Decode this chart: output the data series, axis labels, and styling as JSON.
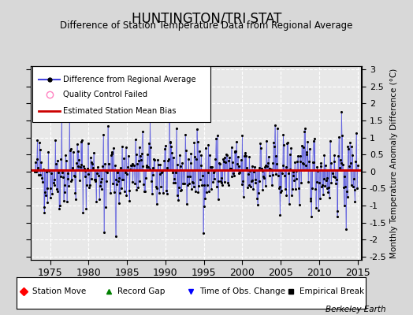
{
  "title": "HUNTINGTON/TRI STAT",
  "subtitle": "Difference of Station Temperature Data from Regional Average",
  "ylabel": "Monthly Temperature Anomaly Difference (°C)",
  "berkeley_earth": "Berkeley Earth",
  "xlim": [
    1972.5,
    2015.5
  ],
  "ylim": [
    -2.6,
    3.1
  ],
  "yticks": [
    -2.5,
    -2,
    -1.5,
    -1,
    -0.5,
    0,
    0.5,
    1,
    1.5,
    2,
    2.5,
    3
  ],
  "xticks": [
    1975,
    1980,
    1985,
    1990,
    1995,
    2000,
    2005,
    2010,
    2015
  ],
  "mean_bias": 0.05,
  "background_color": "#d8d8d8",
  "plot_bg_color": "#e8e8e8",
  "line_color": "#4444dd",
  "bias_color": "#cc0000",
  "seed": 42
}
